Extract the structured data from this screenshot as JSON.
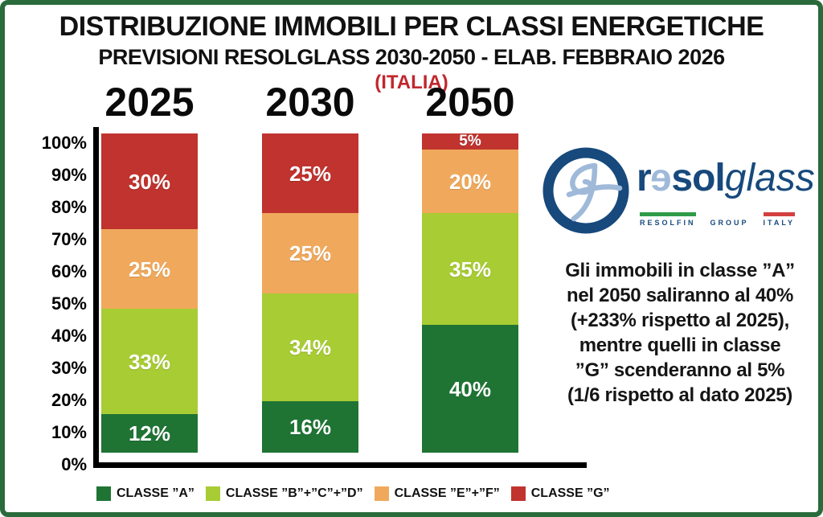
{
  "frame": {
    "border_color": "#2a6b3c",
    "background": "#ffffff"
  },
  "header": {
    "title": "DISTRIBUZIONE IMMOBILI PER CLASSI ENERGETICHE",
    "subtitle": "PREVISIONI RESOLGLASS 2030-2050 - ELAB. FEBBRAIO 2026",
    "region": "(ITALIA)",
    "region_color": "#c0272d"
  },
  "chart_data": {
    "type": "bar",
    "stacked": true,
    "title": "DISTRIBUZIONE IMMOBILI PER CLASSI ENERGETICHE",
    "subtitle": "PREVISIONI RESOLGLASS 2030-2050 - ELAB. FEBBRAIO 2026",
    "categories": [
      "2025",
      "2030",
      "2050"
    ],
    "series": [
      {
        "name": "CLASSE ”A”",
        "color": "#1f7434",
        "values": [
          12,
          16,
          40
        ]
      },
      {
        "name": "CLASSE ”B”+”C”+”D”",
        "color": "#a8cc33",
        "values": [
          33,
          34,
          35
        ]
      },
      {
        "name": "CLASSE ”E”+”F”",
        "color": "#f0a95c",
        "values": [
          25,
          25,
          20
        ]
      },
      {
        "name": "CLASSE ”G”",
        "color": "#c0332e",
        "values": [
          30,
          25,
          5
        ]
      }
    ],
    "value_suffix": "%",
    "ylim": [
      0,
      100
    ],
    "yticks": [
      "100%",
      "90%",
      "80%",
      "70%",
      "60%",
      "50%",
      "40%",
      "30%",
      "20%",
      "10%",
      "0%"
    ],
    "grid": false,
    "legend_position": "bottom",
    "bar_label_color": "#ffffff"
  },
  "logo": {
    "brand_r": "r",
    "brand_reversed_e": "e",
    "brand_sol": "sol",
    "brand_glass": "glass",
    "tagline_left": "RESOLFIN",
    "tagline_mid": "GROUP",
    "tagline_right": "ITALY",
    "navy": "#17497c",
    "light_blue": "#9fb9d9",
    "flag_green": "#2f9a48",
    "flag_red": "#d44040"
  },
  "annotation": {
    "text": "Gli immobili in classe ”A”\nnel 2050 saliranno al 40%\n(+233% rispetto al 2025),\nmentre quelli in classe\n”G” scenderanno al 5%\n(1/6 rispetto al dato 2025)"
  }
}
